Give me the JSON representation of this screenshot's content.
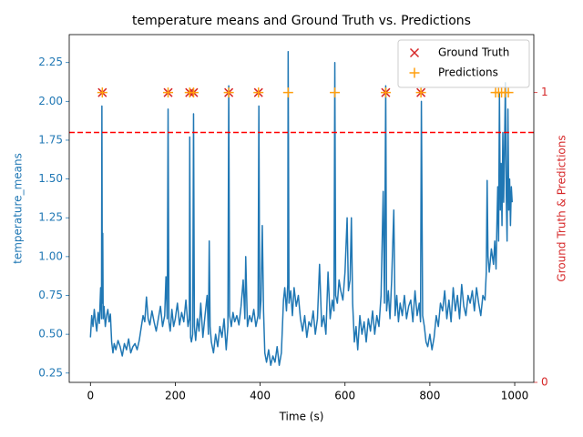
{
  "chart_data": {
    "type": "line",
    "title": "temperature means and Ground Truth vs. Predictions",
    "xlabel": "Time (s)",
    "ylabel": "temperature_means",
    "y2label": "Ground Truth & Predictions",
    "ylabel_color": "#1f77b4",
    "y2label_color": "#d62728",
    "xlim": [
      -50,
      1045
    ],
    "ylim": [
      0.19,
      2.43
    ],
    "y2lim": [
      0,
      1.2
    ],
    "xticks": [
      0,
      200,
      400,
      600,
      800,
      1000
    ],
    "yticks": [
      0.25,
      {
        "value": 0.5,
        "label": "0.50"
      },
      0.75,
      {
        "value": 1,
        "label": "1.00"
      },
      1.25,
      {
        "value": 1.5,
        "label": "1.50"
      },
      1.75,
      {
        "value": 2,
        "label": "2.00"
      },
      2.25
    ],
    "y2ticks": [
      0,
      1
    ],
    "grid": false,
    "legend": "upper right",
    "hline": {
      "value": 1.8,
      "color": "#ff0000",
      "style": "dashed"
    },
    "series": [
      {
        "type": "line",
        "color": "#1f77b4",
        "x": [
          0,
          3,
          6,
          9,
          12,
          15,
          18,
          21,
          24,
          26,
          27,
          28,
          29,
          30,
          32,
          35,
          38,
          41,
          44,
          47,
          50,
          53,
          56,
          60,
          65,
          70,
          75,
          80,
          85,
          90,
          95,
          100,
          105,
          110,
          115,
          120,
          124,
          128,
          132,
          136,
          140,
          145,
          150,
          155,
          160,
          165,
          170,
          175,
          178,
          181,
          183,
          185,
          188,
          192,
          196,
          200,
          205,
          210,
          215,
          220,
          225,
          230,
          233,
          234,
          236,
          238,
          241,
          243,
          245,
          248,
          252,
          256,
          260,
          265,
          270,
          275,
          278,
          280,
          282,
          285,
          290,
          295,
          300,
          305,
          310,
          315,
          320,
          324,
          326,
          328,
          332,
          336,
          340,
          345,
          350,
          355,
          360,
          364,
          366,
          370,
          375,
          380,
          385,
          390,
          395,
          397,
          399,
          402,
          405,
          408,
          411,
          415,
          420,
          425,
          430,
          435,
          440,
          445,
          450,
          455,
          458,
          462,
          465,
          466,
          468,
          472,
          476,
          480,
          485,
          490,
          495,
          500,
          505,
          510,
          515,
          520,
          525,
          530,
          535,
          540,
          545,
          550,
          555,
          560,
          565,
          570,
          574,
          576,
          578,
          582,
          586,
          590,
          595,
          600,
          605,
          608,
          612,
          615,
          618,
          622,
          626,
          630,
          635,
          640,
          645,
          650,
          655,
          660,
          665,
          670,
          675,
          680,
          685,
          690,
          693,
          696,
          698,
          702,
          706,
          710,
          715,
          718,
          722,
          726,
          730,
          735,
          740,
          745,
          750,
          755,
          760,
          765,
          770,
          775,
          778,
          780,
          783,
          787,
          791,
          795,
          800,
          805,
          810,
          815,
          820,
          825,
          830,
          835,
          840,
          845,
          850,
          855,
          860,
          865,
          870,
          875,
          880,
          885,
          890,
          895,
          900,
          905,
          910,
          915,
          920,
          925,
          930,
          933,
          935,
          937,
          940,
          945,
          950,
          953,
          956,
          958,
          960,
          962,
          964,
          966,
          968,
          970,
          972,
          974,
          976,
          978,
          980,
          982,
          984,
          986,
          988,
          990,
          992,
          994
        ],
        "values": [
          0.48,
          0.62,
          0.55,
          0.66,
          0.58,
          0.52,
          0.64,
          0.57,
          0.8,
          0.6,
          1.97,
          0.7,
          1.15,
          0.6,
          0.68,
          0.55,
          0.62,
          0.66,
          0.58,
          0.63,
          0.45,
          0.38,
          0.44,
          0.4,
          0.46,
          0.42,
          0.36,
          0.44,
          0.4,
          0.47,
          0.38,
          0.42,
          0.44,
          0.4,
          0.46,
          0.55,
          0.62,
          0.58,
          0.74,
          0.6,
          0.56,
          0.65,
          0.58,
          0.52,
          0.6,
          0.68,
          0.55,
          0.62,
          0.87,
          0.6,
          1.95,
          0.58,
          0.52,
          0.66,
          0.55,
          0.6,
          0.7,
          0.56,
          0.64,
          0.58,
          0.72,
          0.55,
          0.6,
          1.77,
          0.48,
          0.45,
          0.5,
          1.92,
          0.55,
          0.46,
          0.6,
          0.52,
          0.7,
          0.48,
          0.62,
          0.75,
          0.5,
          1.1,
          0.55,
          0.45,
          0.38,
          0.5,
          0.42,
          0.55,
          0.48,
          0.6,
          0.4,
          0.55,
          2.1,
          0.62,
          0.55,
          0.64,
          0.58,
          0.62,
          0.56,
          0.68,
          0.85,
          0.6,
          1.0,
          0.55,
          0.62,
          0.58,
          0.66,
          0.55,
          0.62,
          1.97,
          0.6,
          0.72,
          1.2,
          0.65,
          0.38,
          0.32,
          0.4,
          0.3,
          0.36,
          0.32,
          0.42,
          0.3,
          0.38,
          0.72,
          0.8,
          0.65,
          0.82,
          2.32,
          0.7,
          0.78,
          0.62,
          0.8,
          0.68,
          0.75,
          0.6,
          0.52,
          0.62,
          0.48,
          0.58,
          0.55,
          0.65,
          0.5,
          0.6,
          0.95,
          0.55,
          0.62,
          0.5,
          0.9,
          0.6,
          0.72,
          0.65,
          2.25,
          0.75,
          0.7,
          0.85,
          0.78,
          0.72,
          0.9,
          1.25,
          0.78,
          0.85,
          1.25,
          0.7,
          0.45,
          0.55,
          0.4,
          0.62,
          0.5,
          0.58,
          0.45,
          0.6,
          0.52,
          0.65,
          0.5,
          0.62,
          0.55,
          0.75,
          1.42,
          0.7,
          2.1,
          0.65,
          0.78,
          0.6,
          0.85,
          1.3,
          0.62,
          0.75,
          0.58,
          0.7,
          0.62,
          0.75,
          0.6,
          0.68,
          0.72,
          0.58,
          0.78,
          0.62,
          0.7,
          0.58,
          2.0,
          0.62,
          0.55,
          0.45,
          0.42,
          0.5,
          0.4,
          0.48,
          0.62,
          0.55,
          0.7,
          0.65,
          0.78,
          0.6,
          0.72,
          0.58,
          0.8,
          0.65,
          0.75,
          0.6,
          0.82,
          0.68,
          0.62,
          0.75,
          0.7,
          0.78,
          0.65,
          0.8,
          0.7,
          0.62,
          0.75,
          0.72,
          0.9,
          1.49,
          1.0,
          0.9,
          1.05,
          0.95,
          1.1,
          0.92,
          1.2,
          1.45,
          1.1,
          2.05,
          1.3,
          1.6,
          1.2,
          1.8,
          1.35,
          1.7,
          2.12,
          1.4,
          1.1,
          1.95,
          1.3,
          1.5,
          1.2,
          1.45,
          1.35
        ]
      },
      {
        "type": "scatter",
        "name": "Ground Truth",
        "color": "#d62728",
        "marker": "x",
        "axis": "y2",
        "x": [
          28,
          183,
          234,
          243,
          326,
          396,
          696,
          779
        ],
        "values": [
          1,
          1,
          1,
          1,
          1,
          1,
          1,
          1
        ]
      },
      {
        "type": "scatter",
        "name": "Predictions",
        "color": "#ff9f0e",
        "marker": "+",
        "axis": "y2",
        "x": [
          28,
          183,
          234,
          243,
          326,
          396,
          466,
          576,
          696,
          779,
          955,
          962,
          969,
          977,
          985
        ],
        "values": [
          1,
          1,
          1,
          1,
          1,
          1,
          1,
          1,
          1,
          1,
          1,
          1,
          1,
          1,
          1
        ]
      }
    ]
  }
}
